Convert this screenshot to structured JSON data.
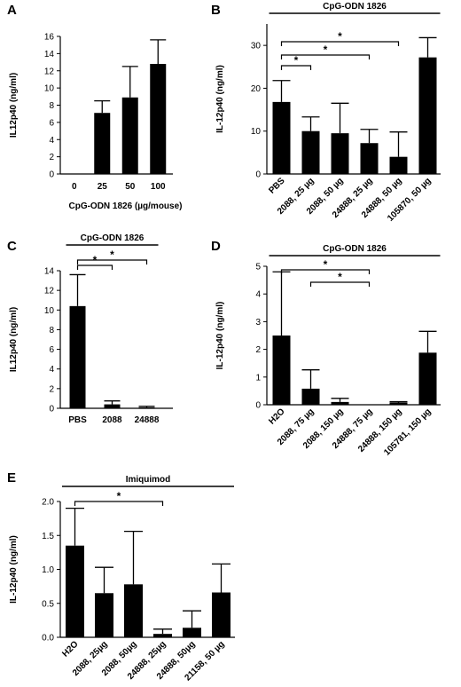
{
  "chart_data": [
    {
      "panel": "A",
      "type": "bar",
      "categories": [
        "0",
        "25",
        "50",
        "100"
      ],
      "values": [
        0,
        7.1,
        8.9,
        12.8
      ],
      "errors": [
        0,
        1.4,
        3.6,
        2.8
      ],
      "xlabel": "CpG-ODN 1826 (µg/mouse)",
      "ylabel": "IL12p40 (ng/ml)",
      "ylim": [
        0,
        16
      ],
      "yticks": [
        "0",
        "2",
        "4",
        "6",
        "8",
        "10",
        "12",
        "14",
        "16"
      ],
      "bar_title": "",
      "comparisons": []
    },
    {
      "panel": "B",
      "type": "bar",
      "categories": [
        "PBS",
        "2088, 25 µg",
        "2088, 50 µg",
        "24888, 25 µg",
        "24888, 50 µg",
        "105870, 50 µg"
      ],
      "values": [
        16.8,
        10.0,
        9.5,
        7.2,
        4.0,
        27.2
      ],
      "errors": [
        5.0,
        3.3,
        7.0,
        3.2,
        5.8,
        4.6
      ],
      "xlabel": "",
      "ylabel": "IL-12p40 (ng/ml)",
      "ylim": [
        0,
        35
      ],
      "yticks": [
        "0",
        "10",
        "20",
        "30"
      ],
      "bar_title": "CpG-ODN 1826",
      "comparisons": [
        {
          "from": 0,
          "to": 1,
          "label": "*"
        },
        {
          "from": 0,
          "to": 3,
          "label": "*"
        },
        {
          "from": 0,
          "to": 4,
          "label": "*"
        }
      ]
    },
    {
      "panel": "C",
      "type": "bar",
      "categories": [
        "PBS",
        "2088",
        "24888"
      ],
      "values": [
        10.4,
        0.4,
        0.1
      ],
      "errors": [
        3.2,
        0.35,
        0.1
      ],
      "xlabel": "",
      "ylabel": "IL12p40 (ng/ml)",
      "ylim": [
        0,
        14
      ],
      "yticks": [
        "0",
        "2",
        "4",
        "6",
        "8",
        "10",
        "12",
        "14"
      ],
      "bar_title": "CpG-ODN 1826",
      "comparisons": [
        {
          "from": 0,
          "to": 1,
          "label": "*"
        },
        {
          "from": 0,
          "to": 2,
          "label": "*"
        }
      ]
    },
    {
      "panel": "D",
      "type": "bar",
      "categories": [
        "H2O",
        "2088, 75 µg",
        "2088, 150 µg",
        "24888, 75 µg",
        "24888, 150 µg",
        "105781, 150 µg"
      ],
      "values": [
        2.5,
        0.58,
        0.1,
        0.0,
        0.08,
        1.88
      ],
      "errors": [
        2.3,
        0.68,
        0.13,
        0.0,
        0.03,
        0.77
      ],
      "xlabel": "",
      "ylabel": "IL-12p40 (ng/ml)",
      "ylim": [
        0,
        5
      ],
      "yticks": [
        "0",
        "1",
        "2",
        "3",
        "4",
        "5"
      ],
      "bar_title": "CpG-ODN 1826",
      "comparisons": [
        {
          "from": 0,
          "to": 3,
          "label": "*"
        },
        {
          "from": 1,
          "to": 3,
          "label": "*"
        }
      ]
    },
    {
      "panel": "E",
      "type": "bar",
      "categories": [
        "H2O",
        "2088, 25µg",
        "2088, 50µg",
        "24888, 25µg",
        "24888, 50µg",
        "21158, 50 µg"
      ],
      "values": [
        1.35,
        0.65,
        0.78,
        0.05,
        0.14,
        0.66
      ],
      "errors": [
        0.55,
        0.38,
        0.78,
        0.07,
        0.25,
        0.42
      ],
      "xlabel": "",
      "ylabel": "IL-12p40 (ng/ml)",
      "ylim": [
        0,
        2.0
      ],
      "yticks": [
        "0.0",
        "0.5",
        "1.0",
        "1.5",
        "2.0"
      ],
      "bar_title": "Imiquimod",
      "comparisons": [
        {
          "from": 0,
          "to": 3,
          "label": "*"
        }
      ]
    }
  ]
}
